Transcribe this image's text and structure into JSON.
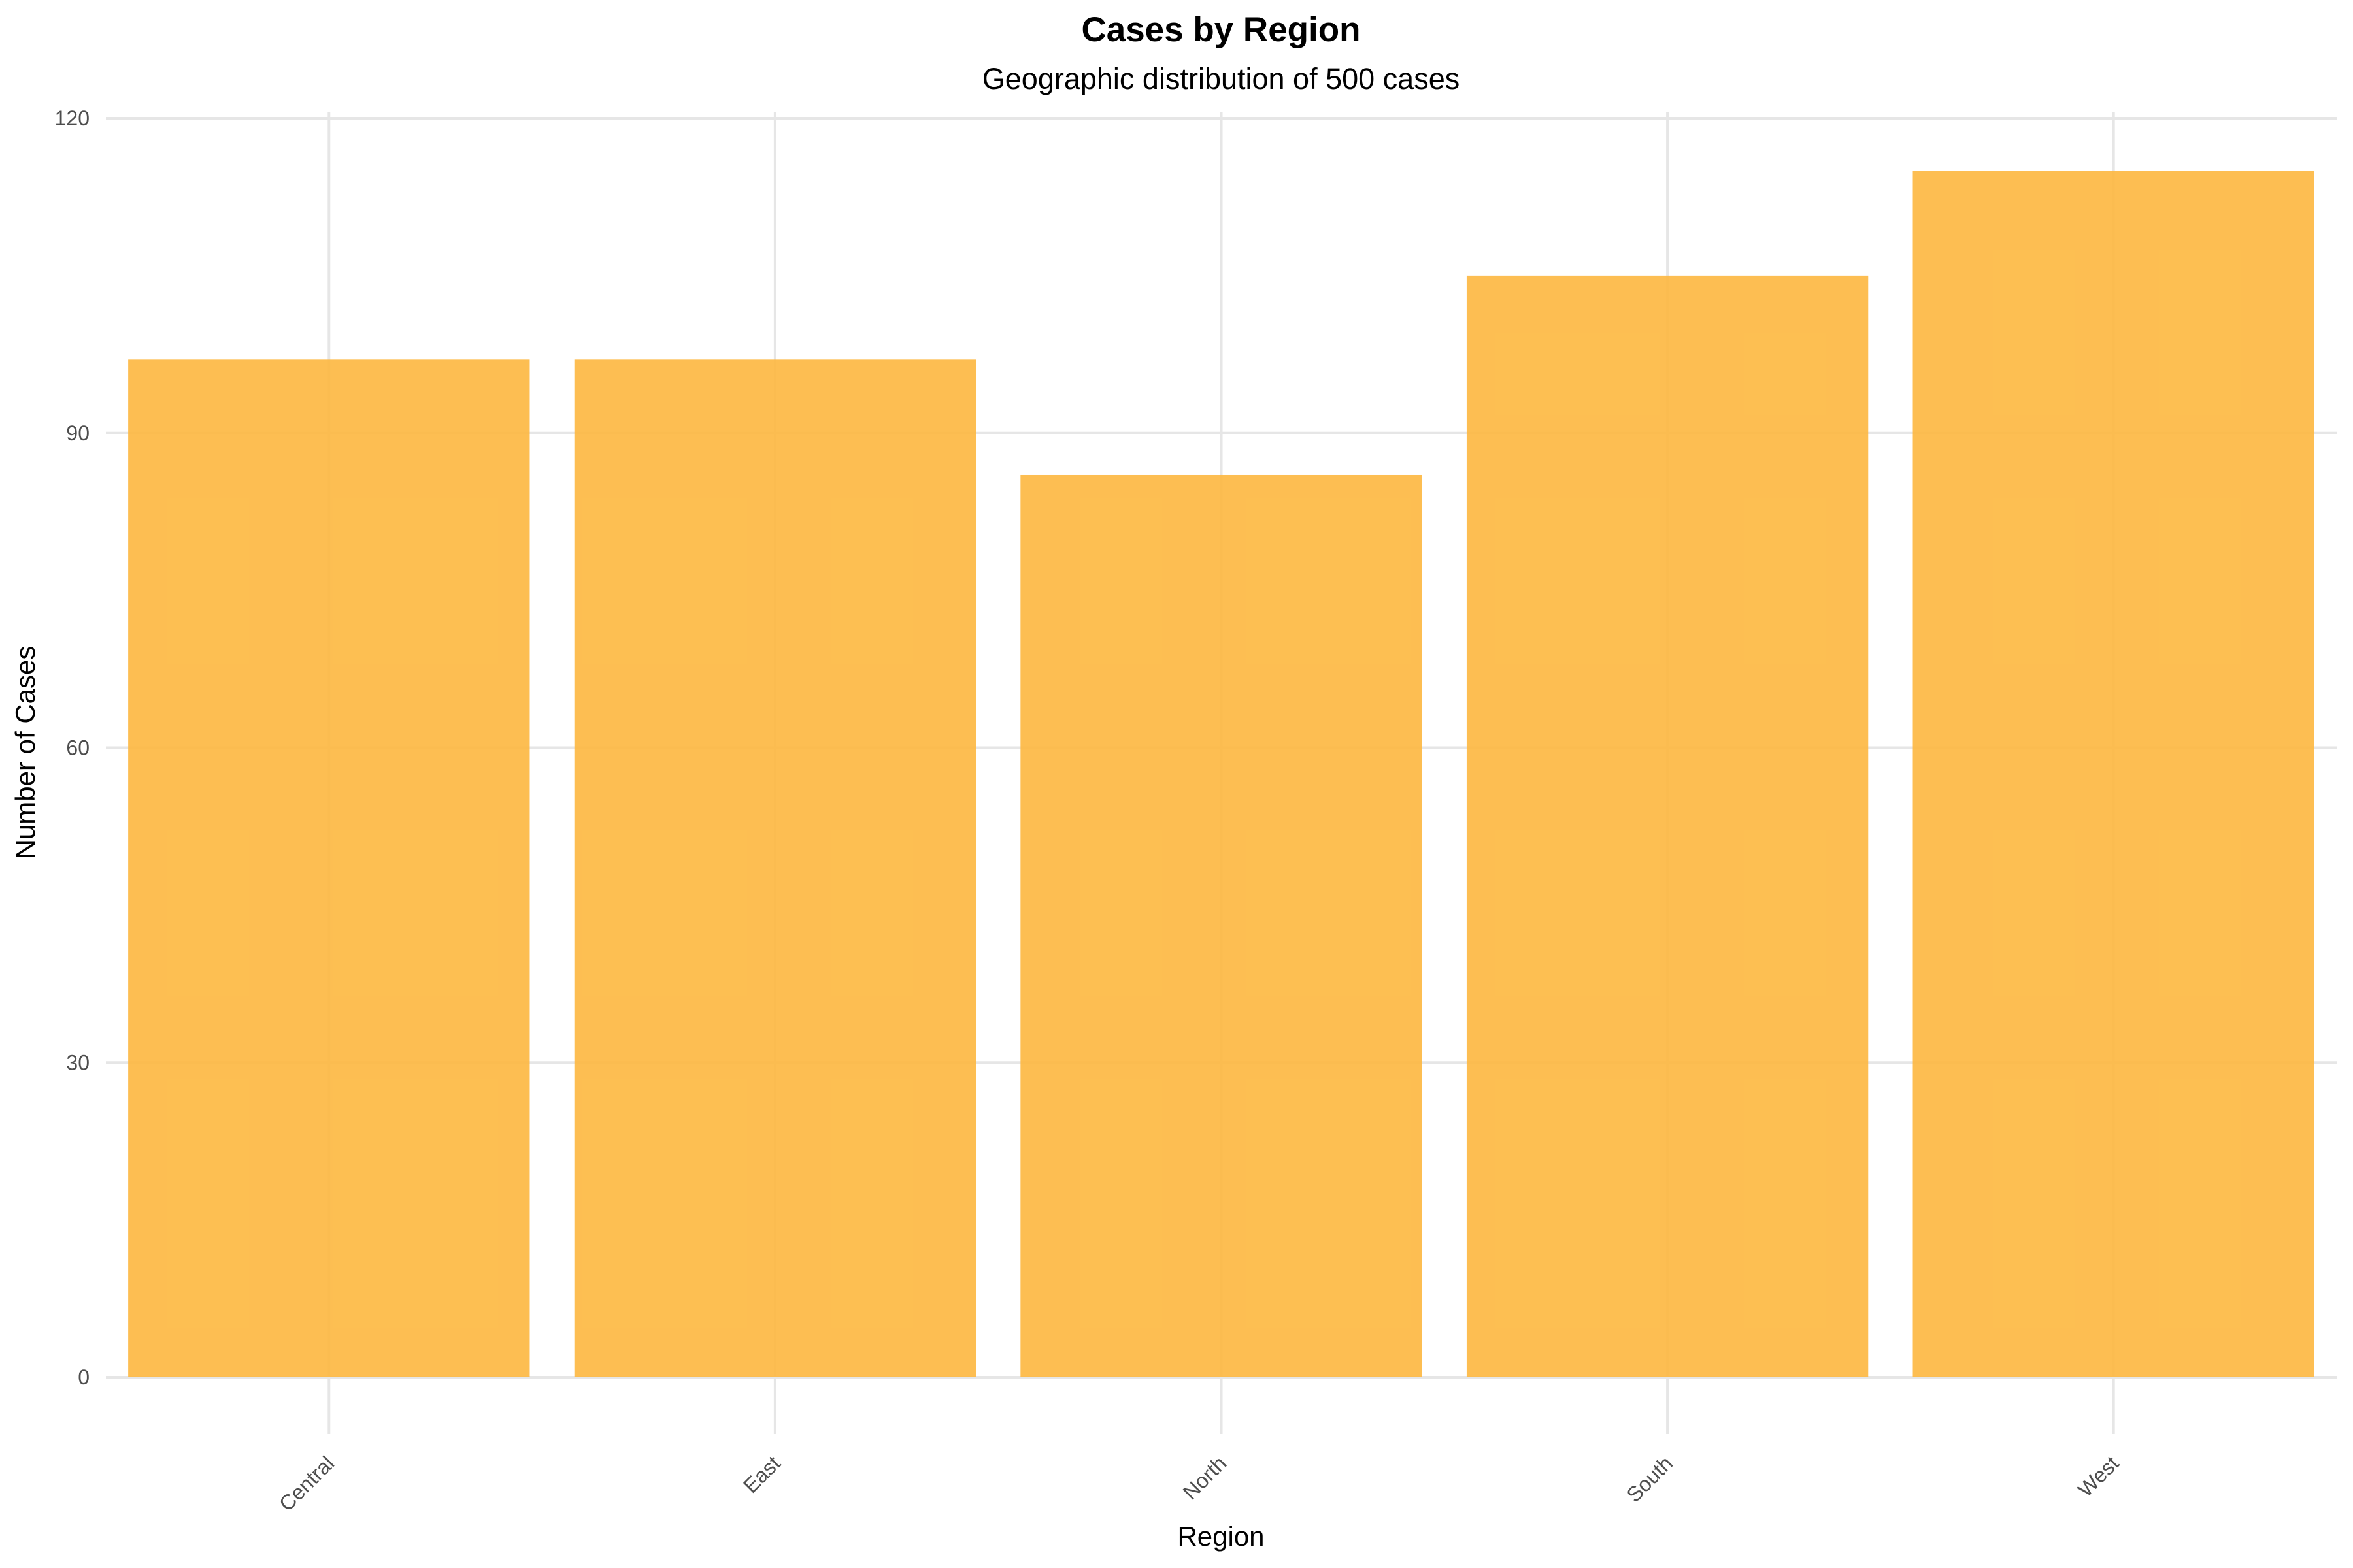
{
  "chart_data": {
    "type": "bar",
    "title": "Cases by Region",
    "subtitle": "Geographic distribution of 500 cases",
    "xlabel": "Region",
    "ylabel": "Number of Cases",
    "categories": [
      "Central",
      "East",
      "North",
      "South",
      "West"
    ],
    "values": [
      97,
      97,
      86,
      105,
      115
    ],
    "ylim": [
      0,
      120
    ],
    "yticks": [
      "0",
      "30",
      "60",
      "90",
      "120"
    ],
    "grid": true,
    "bar_color": "#FDB943",
    "grid_color": "#E6E6E6"
  }
}
